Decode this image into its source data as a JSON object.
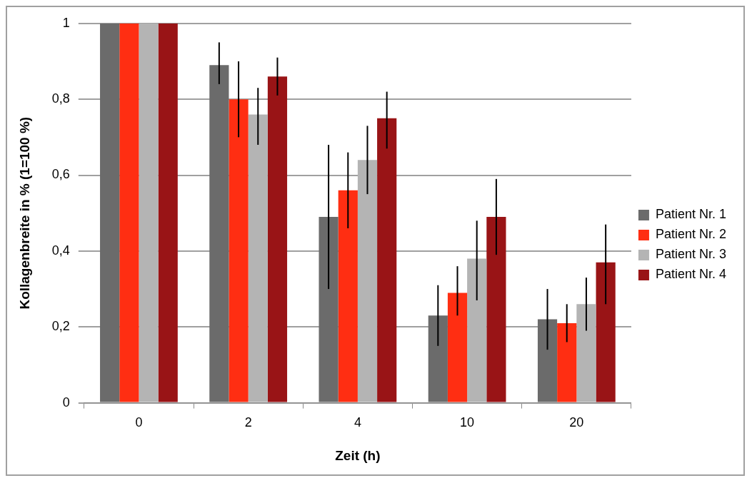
{
  "chart_data": {
    "type": "bar",
    "xlabel": "Zeit (h)",
    "ylabel": "Kollagenbreite in % (1=100 %)",
    "categories": [
      "0",
      "2",
      "4",
      "10",
      "20"
    ],
    "series": [
      {
        "name": "Patient Nr. 1",
        "color": "#6b6b6b",
        "values": [
          1,
          0.89,
          0.49,
          0.23,
          0.22
        ],
        "errors": [
          null,
          [
            0.84,
            0.95
          ],
          [
            0.3,
            0.68
          ],
          [
            0.15,
            0.31
          ],
          [
            0.14,
            0.3
          ]
        ]
      },
      {
        "name": "Patient Nr. 2",
        "color": "#ff2e12",
        "values": [
          1,
          0.8,
          0.56,
          0.29,
          0.21
        ],
        "errors": [
          null,
          [
            0.7,
            0.9
          ],
          [
            0.46,
            0.66
          ],
          [
            0.23,
            0.36
          ],
          [
            0.16,
            0.26
          ]
        ]
      },
      {
        "name": "Patient Nr. 3",
        "color": "#b4b4b4",
        "values": [
          1,
          0.76,
          0.64,
          0.38,
          0.26
        ],
        "errors": [
          null,
          [
            0.68,
            0.83
          ],
          [
            0.55,
            0.73
          ],
          [
            0.27,
            0.48
          ],
          [
            0.19,
            0.33
          ]
        ]
      },
      {
        "name": "Patient Nr. 4",
        "color": "#991416",
        "values": [
          1,
          0.86,
          0.75,
          0.49,
          0.37
        ],
        "errors": [
          null,
          [
            0.81,
            0.91
          ],
          [
            0.67,
            0.82
          ],
          [
            0.39,
            0.59
          ],
          [
            0.26,
            0.47
          ]
        ]
      }
    ],
    "ylim": [
      0,
      1
    ],
    "yticks": [
      0,
      {
        "value": 0.2,
        "label": "0,2"
      },
      {
        "value": 0.4,
        "label": "0,4"
      },
      {
        "value": 0.6,
        "label": "0,6"
      },
      {
        "value": 0.8,
        "label": "0,8"
      },
      1
    ],
    "grid": "y",
    "legend": "right"
  }
}
